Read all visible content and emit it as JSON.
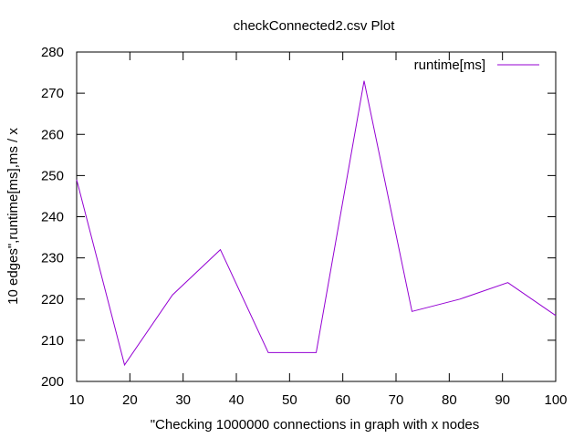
{
  "chart_data": {
    "type": "line",
    "title": "checkConnected2.csv Plot",
    "xlabel": "\"Checking 1000000 connections in graph with x nodes",
    "ylabel": "10 edges\",runtime[ms],ms / x",
    "xlim": [
      10,
      100
    ],
    "ylim": [
      200,
      280
    ],
    "x_ticks": [
      "10",
      "20",
      "30",
      "40",
      "50",
      "60",
      "70",
      "80",
      "90",
      "100"
    ],
    "y_ticks": [
      "200",
      "210",
      "220",
      "230",
      "240",
      "250",
      "260",
      "270",
      "280"
    ],
    "grid": false,
    "legend_position": "top-right",
    "series": [
      {
        "name": "runtime[ms]",
        "color": "#9400d3",
        "x": [
          10,
          19,
          28,
          37,
          46,
          55,
          64,
          73,
          82,
          91,
          100
        ],
        "y": [
          249,
          204,
          221,
          232,
          207,
          207,
          273,
          217,
          220,
          224,
          216
        ]
      }
    ]
  }
}
